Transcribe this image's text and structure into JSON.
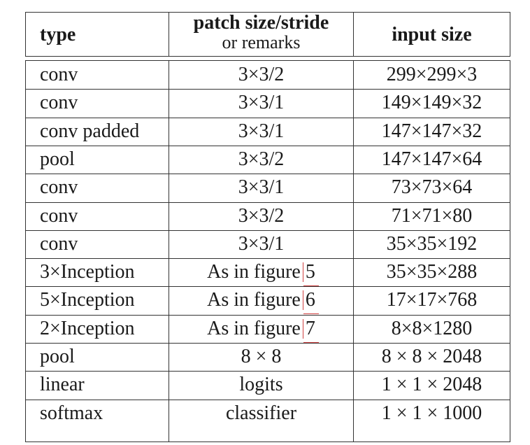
{
  "headers": {
    "type": "type",
    "patch": "patch size/stride",
    "patch_remark": "or remarks",
    "input": "input size"
  },
  "rows": [
    {
      "type": "conv",
      "patch": "3×3/2",
      "input": "299×299×3"
    },
    {
      "type": "conv",
      "patch": "3×3/1",
      "input": "149×149×32"
    },
    {
      "type": "conv padded",
      "patch": "3×3/1",
      "input": "147×147×32"
    },
    {
      "type": "pool",
      "patch": "3×3/2",
      "input": "147×147×64"
    },
    {
      "type": "conv",
      "patch": "3×3/1",
      "input": "73×73×64"
    },
    {
      "type": "conv",
      "patch": "3×3/2",
      "input": "71×71×80"
    },
    {
      "type": "conv",
      "patch": "3×3/1",
      "input": "35×35×192"
    },
    {
      "type": "3×Inception",
      "patch": "As in figure",
      "ref": "5",
      "input": "35×35×288"
    },
    {
      "type": "5×Inception",
      "patch": "As in figure",
      "ref": "6",
      "input": "17×17×768"
    },
    {
      "type": "2×Inception",
      "patch": "As in figure",
      "ref": "7",
      "input": "8×8×1280"
    },
    {
      "type": "pool",
      "patch": "8 × 8",
      "input": "8 × 8 × 2048"
    },
    {
      "type": "linear",
      "patch": "logits",
      "input": "1 × 1 × 2048"
    },
    {
      "type": "softmax",
      "patch": "classifier",
      "input": "1 × 1 × 1000"
    }
  ],
  "colors": {
    "border": "#333333",
    "reference_marker": "#d04040"
  }
}
